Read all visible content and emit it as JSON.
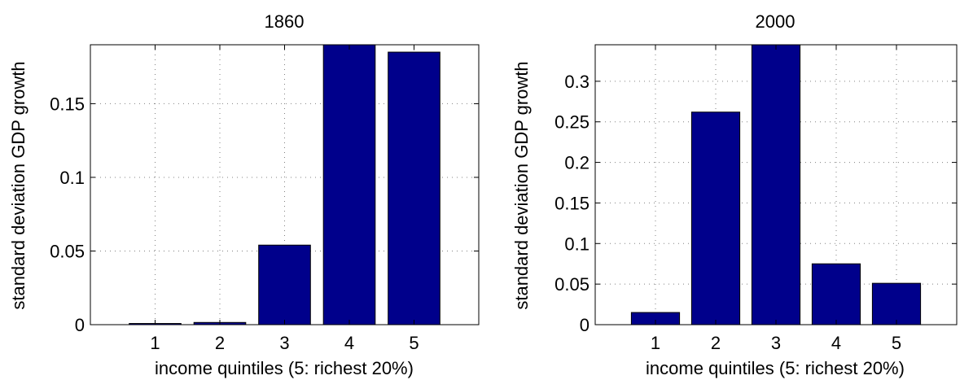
{
  "colors": {
    "bar": "#00008b",
    "axes": "#000000",
    "grid": "#808080",
    "background": "#ffffff"
  },
  "chart_data": [
    {
      "type": "bar",
      "title": "1860",
      "xlabel": "income quintiles (5: richest 20%)",
      "ylabel": "standard deviation GDP growth",
      "categories": [
        "1",
        "2",
        "3",
        "4",
        "5"
      ],
      "values": [
        0.0008,
        0.0015,
        0.054,
        0.19,
        0.185
      ],
      "ylim": [
        0,
        0.19
      ],
      "yticks": [
        0,
        0.05,
        0.1,
        0.15
      ],
      "ytick_labels": [
        "0",
        "0.05",
        "0.1",
        "0.15"
      ],
      "grid": true
    },
    {
      "type": "bar",
      "title": "2000",
      "xlabel": "income quintiles (5: richest 20%)",
      "ylabel": "standard deviation GDP growth",
      "categories": [
        "1",
        "2",
        "3",
        "4",
        "5"
      ],
      "values": [
        0.015,
        0.262,
        0.345,
        0.075,
        0.051
      ],
      "ylim": [
        0,
        0.345
      ],
      "yticks": [
        0,
        0.05,
        0.1,
        0.15,
        0.2,
        0.25,
        0.3
      ],
      "ytick_labels": [
        "0",
        "0.05",
        "0.1",
        "0.15",
        "0.2",
        "0.25",
        "0.3"
      ],
      "grid": true
    }
  ]
}
